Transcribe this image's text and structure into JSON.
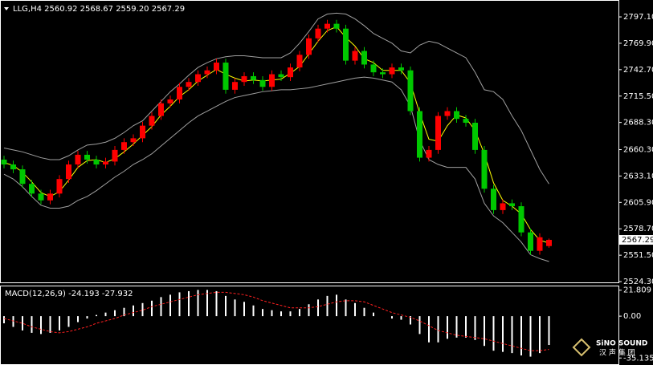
{
  "chart_data": [
    {
      "type": "candlestick",
      "title": "LLG,H4 2560.92 2568.67 2559.20 2567.29",
      "up_color": "#ff0000",
      "down_color": "#00c800",
      "open": [
        2650,
        2645,
        2640,
        2625,
        2615,
        2608,
        2615,
        2630,
        2645,
        2655,
        2650,
        2645,
        2648,
        2660,
        2668,
        2672,
        2685,
        2695,
        2708,
        2712,
        2725,
        2730,
        2738,
        2742,
        2750,
        2722,
        2730,
        2736,
        2732,
        2725,
        2738,
        2735,
        2745,
        2758,
        2775,
        2785,
        2790,
        2785,
        2752,
        2762,
        2748,
        2740,
        2738,
        2745,
        2742,
        2700,
        2652,
        2660,
        2695,
        2700,
        2692,
        2688,
        2660,
        2620,
        2598,
        2605,
        2602,
        2575,
        2556,
        2560.92
      ],
      "high": [
        2654,
        2649,
        2644,
        2629,
        2619,
        2619,
        2634,
        2649,
        2659,
        2659,
        2654,
        2652,
        2664,
        2672,
        2676,
        2689,
        2699,
        2712,
        2716,
        2729,
        2734,
        2742,
        2746,
        2754,
        2754,
        2734,
        2740,
        2740,
        2736,
        2742,
        2742,
        2749,
        2762,
        2779,
        2789,
        2794,
        2794,
        2789,
        2766,
        2766,
        2752,
        2744,
        2749,
        2749,
        2746,
        2704,
        2664,
        2699,
        2704,
        2704,
        2696,
        2692,
        2664,
        2624,
        2609,
        2609,
        2606,
        2579,
        2574,
        2568.67
      ],
      "low": [
        2641,
        2636,
        2621,
        2611,
        2604,
        2604,
        2611,
        2626,
        2641,
        2646,
        2641,
        2641,
        2644,
        2656,
        2664,
        2668,
        2681,
        2691,
        2704,
        2708,
        2721,
        2726,
        2734,
        2738,
        2718,
        2718,
        2726,
        2728,
        2721,
        2721,
        2731,
        2731,
        2741,
        2754,
        2771,
        2781,
        2781,
        2748,
        2748,
        2744,
        2736,
        2734,
        2734,
        2738,
        2696,
        2648,
        2648,
        2656,
        2691,
        2688,
        2684,
        2656,
        2616,
        2594,
        2594,
        2598,
        2571,
        2552,
        2552,
        2559.2
      ],
      "close": [
        2645,
        2640,
        2625,
        2615,
        2608,
        2615,
        2630,
        2645,
        2655,
        2650,
        2645,
        2648,
        2660,
        2668,
        2672,
        2685,
        2695,
        2708,
        2712,
        2725,
        2730,
        2738,
        2742,
        2750,
        2722,
        2730,
        2736,
        2732,
        2725,
        2738,
        2735,
        2745,
        2758,
        2775,
        2785,
        2790,
        2785,
        2752,
        2762,
        2748,
        2740,
        2738,
        2745,
        2742,
        2700,
        2652,
        2660,
        2695,
        2700,
        2692,
        2688,
        2660,
        2620,
        2598,
        2605,
        2602,
        2575,
        2556,
        2570,
        2567.29
      ],
      "series": [
        {
          "color": "#a0a0a0",
          "values": [
            2662,
            2660,
            2658,
            2655,
            2652,
            2650,
            2650,
            2654,
            2660,
            2665,
            2666,
            2668,
            2672,
            2678,
            2685,
            2690,
            2700,
            2710,
            2720,
            2728,
            2737,
            2745,
            2750,
            2754,
            2756,
            2757,
            2757,
            2756,
            2755,
            2755,
            2755,
            2760,
            2770,
            2782,
            2795,
            2800,
            2801,
            2800,
            2795,
            2788,
            2780,
            2775,
            2770,
            2762,
            2760,
            2768,
            2772,
            2770,
            2765,
            2760,
            2755,
            2740,
            2722,
            2720,
            2712,
            2695,
            2680,
            2660,
            2640,
            2625
          ]
        },
        {
          "color": "#a0a0a0",
          "values": [
            2635,
            2630,
            2622,
            2612,
            2603,
            2600,
            2600,
            2602,
            2608,
            2612,
            2618,
            2625,
            2632,
            2638,
            2645,
            2650,
            2656,
            2664,
            2672,
            2680,
            2688,
            2695,
            2700,
            2705,
            2710,
            2714,
            2716,
            2718,
            2720,
            2721,
            2722,
            2722,
            2723,
            2724,
            2726,
            2728,
            2730,
            2732,
            2734,
            2735,
            2734,
            2732,
            2730,
            2722,
            2705,
            2670,
            2650,
            2645,
            2642,
            2642,
            2642,
            2630,
            2605,
            2592,
            2585,
            2575,
            2565,
            2552,
            2548,
            2545
          ]
        },
        {
          "color": "#ffff00",
          "values": [
            2647,
            2644,
            2637,
            2627,
            2616,
            2612,
            2617,
            2629,
            2642,
            2649,
            2650,
            2647,
            2651,
            2658,
            2666,
            2675,
            2684,
            2696,
            2705,
            2715,
            2722,
            2731,
            2737,
            2743,
            2738,
            2734,
            2731,
            2732,
            2731,
            2732,
            2733,
            2739,
            2746,
            2759,
            2772,
            2783,
            2787,
            2776,
            2767,
            2754,
            2750,
            2742,
            2742,
            2742,
            2729,
            2698,
            2671,
            2669,
            2685,
            2696,
            2693,
            2680,
            2656,
            2626,
            2608,
            2602,
            2594,
            2578,
            2567,
            2564
          ]
        }
      ],
      "ylim": [
        2523.5,
        2811.2
      ],
      "yticks": [
        {
          "value": 2797.1,
          "label": "2797.10"
        },
        {
          "value": 2769.9,
          "label": "2769.90"
        },
        {
          "value": 2742.7,
          "label": "2742.70"
        },
        {
          "value": 2715.5,
          "label": "2715.50"
        },
        {
          "value": 2688.3,
          "label": "2688.30"
        },
        {
          "value": 2660.3,
          "label": "2660.30"
        },
        {
          "value": 2633.1,
          "label": "2633.10"
        },
        {
          "value": 2605.9,
          "label": "2605.90"
        },
        {
          "value": 2578.7,
          "label": "2578.70"
        },
        {
          "value": 2551.5,
          "label": "2551.50"
        },
        {
          "value": 2524.3,
          "label": "2524.30"
        }
      ]
    },
    {
      "type": "macd",
      "title": "MACD(12,26,9) -24.193 -27.932",
      "histogram_color": "#ffffff",
      "signal_color": "#ff2020",
      "histogram": [
        -6,
        -9,
        -12,
        -14,
        -15,
        -14,
        -12,
        -9,
        -5,
        -2,
        1,
        3,
        5,
        7,
        9,
        11,
        13,
        16,
        18,
        20,
        21,
        22,
        22,
        21,
        17,
        14,
        12,
        9,
        6,
        5,
        4,
        4,
        6,
        10,
        14,
        17,
        18,
        14,
        11,
        7,
        3,
        0,
        -2,
        -3,
        -7,
        -15,
        -22,
        -22,
        -19,
        -18,
        -18,
        -20,
        -25,
        -29,
        -30,
        -31,
        -33,
        -34,
        -31,
        -24.193
      ],
      "signal": [
        -2,
        -4,
        -6,
        -9,
        -11,
        -13,
        -14,
        -13,
        -11,
        -9,
        -6,
        -4,
        -2,
        1,
        3,
        5,
        8,
        10,
        12,
        14,
        16,
        18,
        19,
        20,
        20,
        19,
        18,
        16,
        13,
        11,
        9,
        7,
        7,
        7,
        8,
        10,
        12,
        13,
        13,
        12,
        9,
        6,
        3,
        1,
        -1,
        -4,
        -8,
        -12,
        -14,
        -16,
        -17,
        -18,
        -19,
        -21,
        -23,
        -25,
        -27,
        -29,
        -29,
        -27.932
      ],
      "ylim": [
        -39,
        25
      ],
      "yticks": [
        21.809,
        {
          "value": 0,
          "label": "0.00"
        },
        -35.135
      ]
    }
  ],
  "watermark": {
    "name": "SiNO SOUND",
    "subtitle": "汉 声 集 团"
  }
}
